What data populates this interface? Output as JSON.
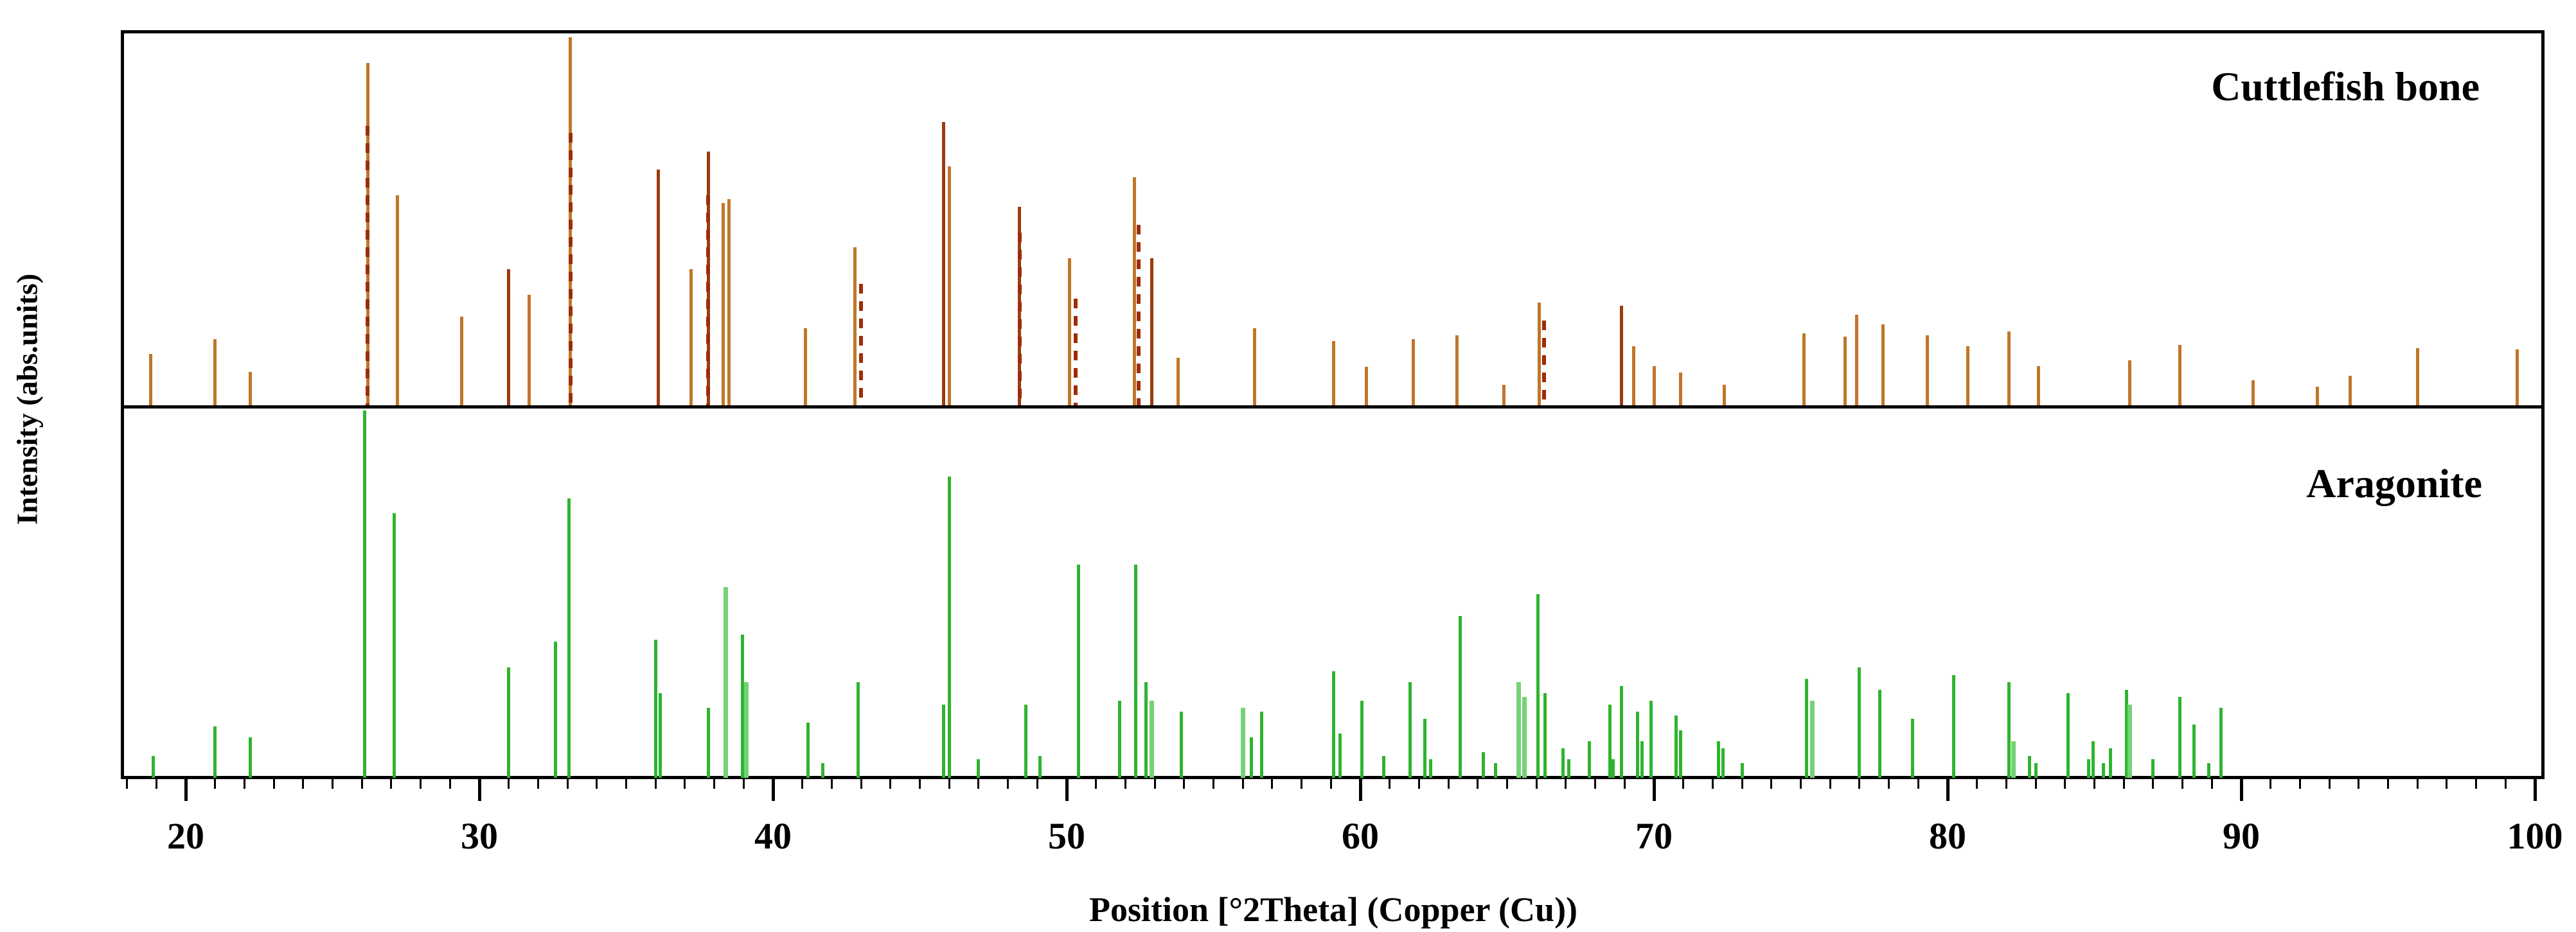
{
  "chart_data": {
    "type": "bar",
    "subtype": "xrd-stick-pattern",
    "xlabel": "Position [°2Theta] (Copper (Cu))",
    "ylabel": "Intensity (abs.units)",
    "x_range": [
      17.8,
      100.3
    ],
    "x_ticks": [
      20,
      30,
      40,
      50,
      60,
      70,
      80,
      90,
      100
    ],
    "minor_tick_step": 1,
    "grid": false,
    "colors": {
      "top_solid": "#c07628",
      "top_dark": "#9a3c10",
      "top_dash": "#9c2d0a",
      "bottom_green": "#2eb42e",
      "bottom_green_light": "#74d274",
      "frame": "#000000"
    },
    "panels": [
      {
        "label": "Cuttlefish bone",
        "series_name": "Cuttlefish bone",
        "color": "#c07628",
        "peaks": [
          {
            "t": 18.8,
            "i": 0.14
          },
          {
            "t": 21.0,
            "i": 0.18
          },
          {
            "t": 22.2,
            "i": 0.09
          },
          {
            "t": 26.2,
            "i": 0.93
          },
          {
            "t": 27.2,
            "i": 0.57
          },
          {
            "t": 29.4,
            "i": 0.24
          },
          {
            "t": 31.0,
            "i": 0.37,
            "dark": true
          },
          {
            "t": 31.7,
            "i": 0.3
          },
          {
            "t": 33.1,
            "i": 1.0
          },
          {
            "t": 36.1,
            "i": 0.64,
            "dark": true
          },
          {
            "t": 37.2,
            "i": 0.37
          },
          {
            "t": 37.8,
            "i": 0.69,
            "dark": true
          },
          {
            "t": 38.3,
            "i": 0.55
          },
          {
            "t": 38.5,
            "i": 0.56
          },
          {
            "t": 41.1,
            "i": 0.21
          },
          {
            "t": 42.8,
            "i": 0.43
          },
          {
            "t": 45.8,
            "i": 0.77,
            "dark": true
          },
          {
            "t": 46.0,
            "i": 0.65
          },
          {
            "t": 48.4,
            "i": 0.54,
            "dark": true
          },
          {
            "t": 50.1,
            "i": 0.4
          },
          {
            "t": 52.3,
            "i": 0.62
          },
          {
            "t": 52.9,
            "i": 0.4,
            "dark": true
          },
          {
            "t": 53.8,
            "i": 0.13
          },
          {
            "t": 56.4,
            "i": 0.21
          },
          {
            "t": 59.1,
            "i": 0.175
          },
          {
            "t": 60.2,
            "i": 0.105
          },
          {
            "t": 61.8,
            "i": 0.18
          },
          {
            "t": 63.3,
            "i": 0.19
          },
          {
            "t": 64.9,
            "i": 0.056
          },
          {
            "t": 66.1,
            "i": 0.28
          },
          {
            "t": 68.9,
            "i": 0.27,
            "dark": true
          },
          {
            "t": 69.3,
            "i": 0.16
          },
          {
            "t": 70.0,
            "i": 0.107
          },
          {
            "t": 70.9,
            "i": 0.089
          },
          {
            "t": 72.4,
            "i": 0.056
          },
          {
            "t": 75.1,
            "i": 0.196
          },
          {
            "t": 76.5,
            "i": 0.187
          },
          {
            "t": 76.9,
            "i": 0.246
          },
          {
            "t": 77.8,
            "i": 0.22
          },
          {
            "t": 79.3,
            "i": 0.19
          },
          {
            "t": 80.7,
            "i": 0.16
          },
          {
            "t": 82.1,
            "i": 0.2
          },
          {
            "t": 83.1,
            "i": 0.107
          },
          {
            "t": 86.2,
            "i": 0.122
          },
          {
            "t": 87.9,
            "i": 0.164
          },
          {
            "t": 90.4,
            "i": 0.068
          },
          {
            "t": 92.6,
            "i": 0.051
          },
          {
            "t": 93.7,
            "i": 0.08
          },
          {
            "t": 96.0,
            "i": 0.155
          },
          {
            "t": 99.4,
            "i": 0.152
          }
        ],
        "reference_dashes": [
          {
            "t": 26.2,
            "i": 0.76
          },
          {
            "t": 33.1,
            "i": 0.74
          },
          {
            "t": 37.8,
            "i": 0.57
          },
          {
            "t": 43.0,
            "i": 0.33
          },
          {
            "t": 48.4,
            "i": 0.47
          },
          {
            "t": 50.3,
            "i": 0.29
          },
          {
            "t": 52.45,
            "i": 0.49
          },
          {
            "t": 66.25,
            "i": 0.23
          }
        ]
      },
      {
        "label": "Aragonite",
        "series_name": "Aragonite",
        "color": "#2eb42e",
        "peaks": [
          {
            "t": 18.9,
            "i": 0.06
          },
          {
            "t": 21.0,
            "i": 0.14
          },
          {
            "t": 22.2,
            "i": 0.11
          },
          {
            "t": 26.1,
            "i": 1.0
          },
          {
            "t": 27.1,
            "i": 0.72
          },
          {
            "t": 31.0,
            "i": 0.3
          },
          {
            "t": 32.6,
            "i": 0.37
          },
          {
            "t": 33.05,
            "i": 0.76
          },
          {
            "t": 36.0,
            "i": 0.375
          },
          {
            "t": 36.15,
            "i": 0.23
          },
          {
            "t": 37.8,
            "i": 0.19
          },
          {
            "t": 38.4,
            "i": 0.52,
            "light": true
          },
          {
            "t": 38.95,
            "i": 0.39
          },
          {
            "t": 39.1,
            "i": 0.26,
            "light": true
          },
          {
            "t": 41.2,
            "i": 0.15
          },
          {
            "t": 41.7,
            "i": 0.04
          },
          {
            "t": 42.9,
            "i": 0.26
          },
          {
            "t": 45.8,
            "i": 0.2
          },
          {
            "t": 46.0,
            "i": 0.82
          },
          {
            "t": 47.0,
            "i": 0.05
          },
          {
            "t": 48.6,
            "i": 0.2
          },
          {
            "t": 49.1,
            "i": 0.06
          },
          {
            "t": 50.4,
            "i": 0.58
          },
          {
            "t": 51.8,
            "i": 0.21
          },
          {
            "t": 52.35,
            "i": 0.58
          },
          {
            "t": 52.7,
            "i": 0.26
          },
          {
            "t": 52.9,
            "i": 0.21,
            "light": true
          },
          {
            "t": 53.9,
            "i": 0.18
          },
          {
            "t": 56.0,
            "i": 0.19,
            "light": true
          },
          {
            "t": 56.3,
            "i": 0.11
          },
          {
            "t": 56.65,
            "i": 0.18
          },
          {
            "t": 59.1,
            "i": 0.29
          },
          {
            "t": 59.3,
            "i": 0.12
          },
          {
            "t": 60.05,
            "i": 0.21
          },
          {
            "t": 60.8,
            "i": 0.06
          },
          {
            "t": 61.7,
            "i": 0.26
          },
          {
            "t": 62.2,
            "i": 0.16
          },
          {
            "t": 62.4,
            "i": 0.05
          },
          {
            "t": 63.4,
            "i": 0.44
          },
          {
            "t": 64.2,
            "i": 0.07
          },
          {
            "t": 64.6,
            "i": 0.04
          },
          {
            "t": 65.4,
            "i": 0.26,
            "light": true
          },
          {
            "t": 65.6,
            "i": 0.22,
            "light": true
          },
          {
            "t": 66.05,
            "i": 0.5
          },
          {
            "t": 66.3,
            "i": 0.23
          },
          {
            "t": 66.9,
            "i": 0.08
          },
          {
            "t": 67.1,
            "i": 0.05
          },
          {
            "t": 67.8,
            "i": 0.1
          },
          {
            "t": 68.5,
            "i": 0.2
          },
          {
            "t": 68.6,
            "i": 0.05
          },
          {
            "t": 68.9,
            "i": 0.25
          },
          {
            "t": 69.45,
            "i": 0.18
          },
          {
            "t": 69.6,
            "i": 0.1
          },
          {
            "t": 69.9,
            "i": 0.21
          },
          {
            "t": 70.75,
            "i": 0.17
          },
          {
            "t": 70.9,
            "i": 0.13
          },
          {
            "t": 72.2,
            "i": 0.1
          },
          {
            "t": 72.35,
            "i": 0.08
          },
          {
            "t": 73.0,
            "i": 0.04
          },
          {
            "t": 75.2,
            "i": 0.27
          },
          {
            "t": 75.4,
            "i": 0.21,
            "light": true
          },
          {
            "t": 77.0,
            "i": 0.3
          },
          {
            "t": 77.7,
            "i": 0.24
          },
          {
            "t": 78.8,
            "i": 0.16
          },
          {
            "t": 80.2,
            "i": 0.28
          },
          {
            "t": 82.1,
            "i": 0.26
          },
          {
            "t": 82.25,
            "i": 0.1,
            "light": true
          },
          {
            "t": 82.8,
            "i": 0.06
          },
          {
            "t": 83.0,
            "i": 0.04
          },
          {
            "t": 84.1,
            "i": 0.23
          },
          {
            "t": 84.8,
            "i": 0.05
          },
          {
            "t": 84.95,
            "i": 0.1
          },
          {
            "t": 85.3,
            "i": 0.04
          },
          {
            "t": 85.55,
            "i": 0.08
          },
          {
            "t": 86.1,
            "i": 0.24
          },
          {
            "t": 86.2,
            "i": 0.2,
            "light": true
          },
          {
            "t": 87.0,
            "i": 0.05
          },
          {
            "t": 87.9,
            "i": 0.22
          },
          {
            "t": 88.4,
            "i": 0.145
          },
          {
            "t": 88.9,
            "i": 0.04
          },
          {
            "t": 89.3,
            "i": 0.19
          }
        ],
        "reference_dashes": []
      }
    ]
  }
}
